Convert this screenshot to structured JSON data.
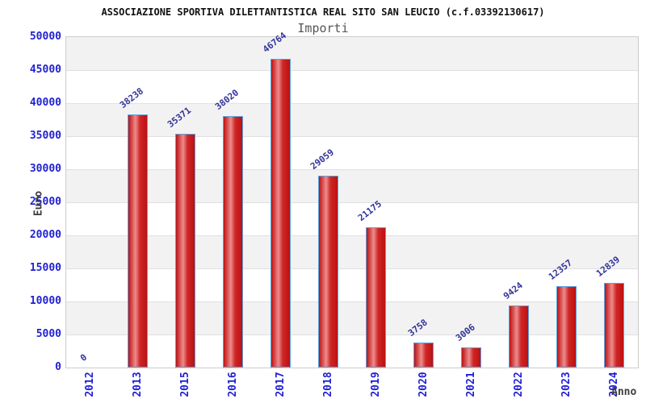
{
  "header": {
    "title": "ASSOCIAZIONE SPORTIVA DILETTANTISTICA REAL SITO SAN LEUCIO (c.f.03392130617)",
    "subtitle": "Importi"
  },
  "axes": {
    "y_title": "Euro",
    "x_title": "Anno",
    "y_ticks": [
      "0",
      "5000",
      "10000",
      "15000",
      "20000",
      "25000",
      "30000",
      "35000",
      "40000",
      "45000",
      "50000"
    ]
  },
  "chart_data": {
    "type": "bar",
    "title": "ASSOCIAZIONE SPORTIVA DILETTANTISTICA REAL SITO SAN LEUCIO (c.f.03392130617)",
    "subtitle": "Importi",
    "categories": [
      "2012",
      "2013",
      "2015",
      "2016",
      "2017",
      "2018",
      "2019",
      "2020",
      "2021",
      "2022",
      "2023",
      "2024"
    ],
    "values": [
      0,
      38238,
      35371,
      38020,
      46764,
      29059,
      21175,
      3758,
      3006,
      9424,
      12357,
      12839
    ],
    "value_labels": [
      "0",
      "38238",
      "35371",
      "38020",
      "46764",
      "29059",
      "21175",
      "3758",
      "3006",
      "9424",
      "12357",
      "12839"
    ],
    "xlabel": "Anno",
    "ylabel": "Euro",
    "ylim": [
      0,
      50000
    ],
    "y_tick_step": 5000,
    "grid": "horizontal-bands",
    "legend": "none",
    "colors": {
      "tick_label": "#2121d3",
      "value_label": "#333399",
      "band_gray": "#f2f2f2",
      "band_white": "#ffffff",
      "gridline": "#e0e0e0",
      "plot_border": "#cccccc",
      "bar_border": "#5aa2e0",
      "bar_dark": "#bd1111",
      "bar_mid": "#cf2626",
      "bar_highlight": "#ee8c8c",
      "title": "#111111",
      "subtitle": "#565656",
      "axis_title": "#3c3c3c"
    }
  }
}
